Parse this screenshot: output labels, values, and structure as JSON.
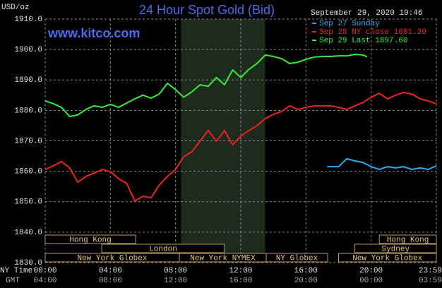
{
  "chart_data": {
    "type": "line",
    "title": "24 Hour Spot Gold (Bid)",
    "subtitle": "www.kitco.com",
    "ylabel": "USD/oz",
    "timestamp": "September 29, 2020 19:46",
    "xlabel": "NY Time",
    "x2label": "GMT",
    "xlim": [
      0,
      24
    ],
    "ylim": [
      1830,
      1910
    ],
    "xticks": [
      {
        "value": 0,
        "label": "00:00"
      },
      {
        "value": 4,
        "label": "04:00"
      },
      {
        "value": 8,
        "label": "08:00"
      },
      {
        "value": 12,
        "label": "12:00"
      },
      {
        "value": 16,
        "label": "16:00"
      },
      {
        "value": 20,
        "label": "20:00"
      },
      {
        "value": 24,
        "label": "23:59"
      }
    ],
    "x2ticks": [
      {
        "value": 0,
        "label": "04:00"
      },
      {
        "value": 4,
        "label": "08:00"
      },
      {
        "value": 8,
        "label": "12:00"
      },
      {
        "value": 12,
        "label": "16:00"
      },
      {
        "value": 16,
        "label": "20:00"
      },
      {
        "value": 20,
        "label": "00:00"
      },
      {
        "value": 24,
        "label": "03:59"
      }
    ],
    "yticks": [
      {
        "value": 1830,
        "label": "1830.0"
      },
      {
        "value": 1840,
        "label": "1840.0"
      },
      {
        "value": 1850,
        "label": "1850.0"
      },
      {
        "value": 1860,
        "label": "1860.0"
      },
      {
        "value": 1870,
        "label": "1870.0"
      },
      {
        "value": 1880,
        "label": "1880.0"
      },
      {
        "value": 1890,
        "label": "1890.0"
      },
      {
        "value": 1900,
        "label": "1900.0"
      },
      {
        "value": 1910,
        "label": "1910.0"
      }
    ],
    "grid": true,
    "highlight_x": [
      8.33,
      13.5
    ],
    "series": [
      {
        "name": "Sep 27 Sunday",
        "color": "#33aaee",
        "x": [
          17.3,
          17.5,
          18,
          18.5,
          19,
          19.5,
          20,
          20.5,
          21,
          21.5,
          22,
          22.5,
          23,
          23.5,
          24
        ],
        "values": [
          1861.5,
          1861.5,
          1861.5,
          1864.1,
          1863.4,
          1862.9,
          1861.5,
          1860.6,
          1861.5,
          1861.1,
          1861.5,
          1860.6,
          1861.1,
          1860.6,
          1861.8
        ]
      },
      {
        "name": "Sep 28 NY close 1881.20",
        "color": "#ee2222",
        "x": [
          0,
          0.5,
          1,
          1.5,
          2,
          2.5,
          3,
          3.5,
          4,
          4.5,
          5,
          5.5,
          6,
          6.5,
          7,
          7.5,
          8,
          8.5,
          9,
          9.5,
          10,
          10.5,
          11,
          11.5,
          12,
          12.5,
          13,
          13.5,
          14,
          14.5,
          15,
          15.5,
          16,
          16.5,
          17,
          17.5,
          18,
          18.5,
          19,
          19.5,
          20,
          20.5,
          21,
          21.5,
          22,
          22.5,
          23,
          23.5,
          24
        ],
        "values": [
          1860.6,
          1861.8,
          1863.2,
          1861.1,
          1856.4,
          1858.3,
          1859.4,
          1860.6,
          1859.9,
          1857.6,
          1856.0,
          1850.2,
          1851.8,
          1851.3,
          1855.5,
          1858.3,
          1860.6,
          1864.8,
          1866.4,
          1869.9,
          1873.4,
          1869.9,
          1873.4,
          1868.7,
          1871.5,
          1873.4,
          1875.0,
          1877.3,
          1878.7,
          1879.6,
          1881.5,
          1880.3,
          1881.0,
          1881.5,
          1881.5,
          1881.5,
          1881.0,
          1880.3,
          1881.5,
          1882.6,
          1884.3,
          1885.6,
          1883.8,
          1885.0,
          1885.9,
          1885.4,
          1883.8,
          1883.1,
          1882.2
        ]
      },
      {
        "name": "Sep 29 Last 1897.60",
        "color": "#33ee33",
        "x": [
          0,
          0.5,
          1,
          1.5,
          2,
          2.5,
          3,
          3.5,
          4,
          4.5,
          5,
          5.5,
          6,
          6.5,
          7,
          7.5,
          8,
          8.5,
          9,
          9.5,
          10,
          10.5,
          11,
          11.5,
          12,
          12.5,
          13,
          13.5,
          14,
          14.5,
          15,
          15.5,
          16,
          16.5,
          17,
          17.5,
          18,
          18.5,
          19,
          19.5,
          19.75
        ],
        "values": [
          1883.1,
          1882.2,
          1881.0,
          1878.0,
          1878.5,
          1880.3,
          1881.5,
          1881.0,
          1882.0,
          1881.0,
          1882.4,
          1883.8,
          1885.0,
          1884.0,
          1885.4,
          1888.9,
          1886.8,
          1884.3,
          1886.1,
          1888.4,
          1887.9,
          1890.8,
          1888.4,
          1893.3,
          1890.8,
          1893.5,
          1895.4,
          1898.2,
          1897.7,
          1897.0,
          1895.4,
          1895.8,
          1896.8,
          1897.5,
          1897.7,
          1897.7,
          1897.9,
          1897.9,
          1898.4,
          1898.2,
          1897.6
        ]
      }
    ],
    "session_rows": [
      [
        {
          "label": "Hong Kong",
          "start": 0,
          "end": 5.55
        },
        {
          "label": "Hong Kong",
          "start": 20.5,
          "end": 24
        }
      ],
      [
        {
          "label": "London",
          "start": 3.47,
          "end": 11.0
        },
        {
          "label": "Sydney",
          "start": 19.0,
          "end": 24
        }
      ],
      [
        {
          "label": "New York Globex",
          "start": 0,
          "end": 8.23
        },
        {
          "label": "New York NYMEX",
          "start": 8.23,
          "end": 13.56
        },
        {
          "label": "NY Globex",
          "start": 13.56,
          "end": 17.33
        },
        {
          "label": "New York Globex",
          "start": 18.0,
          "end": 24
        }
      ]
    ]
  }
}
